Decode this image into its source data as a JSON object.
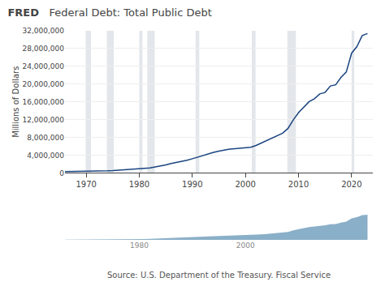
{
  "chart_data": [
    {
      "type": "line",
      "title": "Federal Debt: Total Public Debt",
      "ylabel": "Millions of Dollars",
      "annotations": [
        "FRED",
        "Source: U.S. Department of the Treasury. Fiscal Service"
      ],
      "x": [
        1966,
        1967,
        1968,
        1969,
        1970,
        1971,
        1972,
        1973,
        1974,
        1975,
        1976,
        1977,
        1978,
        1979,
        1980,
        1981,
        1982,
        1983,
        1984,
        1985,
        1986,
        1987,
        1988,
        1989,
        1990,
        1991,
        1992,
        1993,
        1994,
        1995,
        1996,
        1997,
        1998,
        1999,
        2000,
        2001,
        2002,
        2003,
        2004,
        2005,
        2006,
        2007,
        2008,
        2009,
        2010,
        2011,
        2012,
        2013,
        2014,
        2015,
        2016,
        2017,
        2018,
        2019,
        2020,
        2021,
        2022,
        2023
      ],
      "values": [
        319907,
        326331,
        347578,
        353720,
        370918,
        398129,
        427260,
        457326,
        474960,
        533189,
        620433,
        698840,
        771544,
        826519,
        907701,
        994845,
        1142034,
        1377210,
        1572266,
        1823103,
        2120629,
        2345578,
        2601307,
        2867800,
        3206290,
        3598178,
        4001787,
        4351044,
        4643307,
        4920586,
        5181465,
        5369206,
        5478189,
        5605523,
        5628700,
        5769881,
        6198401,
        6760014,
        7354657,
        7905300,
        8450961,
        8950744,
        9985959,
        11909829,
        13561623,
        14764222,
        16050921,
        16719397,
        17794000,
        18120106,
        19573445,
        19846646,
        21516058,
        22719401,
        26945391,
        28428919,
        30928911,
        31381280
      ],
      "color": "#1a4480",
      "xlim": [
        1966,
        2024
      ],
      "xticks": [
        1970,
        1980,
        1990,
        2000,
        2010,
        2020
      ],
      "ylim": [
        0,
        32000000
      ],
      "yticks": [
        0,
        {
          "value": 4000000,
          "label": "4,000,000"
        },
        {
          "value": 8000000,
          "label": "8,000,000"
        },
        {
          "value": 12000000,
          "label": "12,000,000"
        },
        {
          "value": 16000000,
          "label": "16,000,000"
        },
        {
          "value": 20000000,
          "label": "20,000,000"
        },
        {
          "value": 24000000,
          "label": "24,000,000"
        },
        {
          "value": 28000000,
          "label": "28,000,000"
        },
        {
          "value": 32000000,
          "label": "32,000,000"
        }
      ],
      "grid": true,
      "recession_bands": [
        [
          1969.9,
          1970.9
        ],
        [
          1973.9,
          1975.2
        ],
        [
          1980.0,
          1980.6
        ],
        [
          1981.5,
          1982.9
        ],
        [
          1990.6,
          1991.3
        ],
        [
          2001.2,
          2001.9
        ],
        [
          2007.9,
          2009.5
        ],
        [
          2020.0,
          2020.5
        ]
      ]
    },
    {
      "type": "area",
      "x": [
        1966,
        1967,
        1968,
        1969,
        1970,
        1971,
        1972,
        1973,
        1974,
        1975,
        1976,
        1977,
        1978,
        1979,
        1980,
        1981,
        1982,
        1983,
        1984,
        1985,
        1986,
        1987,
        1988,
        1989,
        1990,
        1991,
        1992,
        1993,
        1994,
        1995,
        1996,
        1997,
        1998,
        1999,
        2000,
        2001,
        2002,
        2003,
        2004,
        2005,
        2006,
        2007,
        2008,
        2009,
        2010,
        2011,
        2012,
        2013,
        2014,
        2015,
        2016,
        2017,
        2018,
        2019,
        2020,
        2021,
        2022,
        2023
      ],
      "values": [
        319907,
        326331,
        347578,
        353720,
        370918,
        398129,
        427260,
        457326,
        474960,
        533189,
        620433,
        698840,
        771544,
        826519,
        907701,
        994845,
        1142034,
        1377210,
        1572266,
        1823103,
        2120629,
        2345578,
        2601307,
        2867800,
        3206290,
        3598178,
        4001787,
        4351044,
        4643307,
        4920586,
        5181465,
        5369206,
        5478189,
        5605523,
        5628700,
        5769881,
        6198401,
        6760014,
        7354657,
        7905300,
        8450961,
        8950744,
        9985959,
        11909829,
        13561623,
        14764222,
        16050921,
        16719397,
        17794000,
        18120106,
        19573445,
        19846646,
        21516058,
        22719401,
        26945391,
        28428919,
        30928911,
        31381280
      ],
      "color": "#8aafc8",
      "xlim": [
        1966,
        2024
      ],
      "xticks": [
        1980,
        2000
      ],
      "ylim": [
        0,
        31381280
      ],
      "tick_labels": "x"
    }
  ]
}
